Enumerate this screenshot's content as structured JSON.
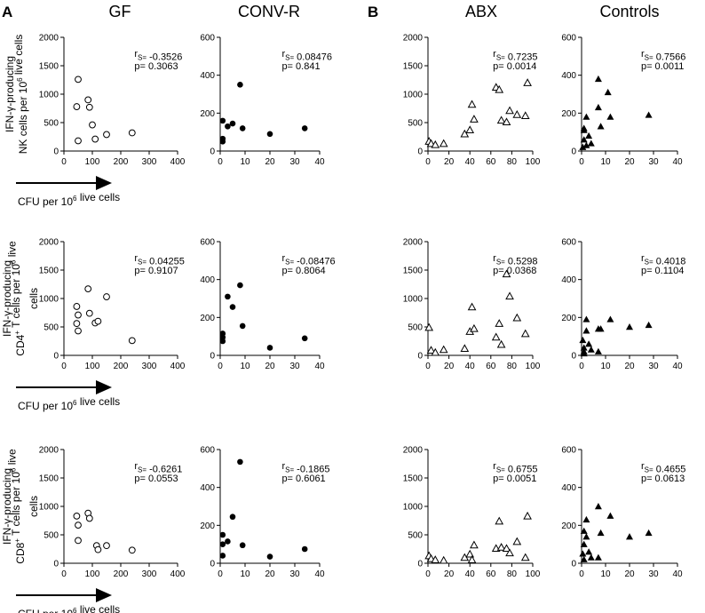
{
  "figure": {
    "panel_labels": [
      "A",
      "B"
    ],
    "column_titles": [
      "GF",
      "CONV-R",
      "ABX",
      "Controls"
    ],
    "row_ylabels": [
      [
        "IFN-γ-producing",
        "NK cells per 10^6 live cells"
      ],
      [
        "IFN-γ-producing",
        "CD4^+ T cells per 10^6 live",
        "cells"
      ],
      [
        "IFN-γ-producing",
        "CD8^+ T cells per 10^6 live",
        "cells"
      ]
    ],
    "cfu_label": "CFU per 10^6 live cells"
  },
  "chart_data": [
    {
      "id": "nk-gf",
      "type": "scatter",
      "column": "GF",
      "row": "NK",
      "marker": "open-circle",
      "xlim": [
        0,
        400
      ],
      "xticks": [
        0,
        100,
        200,
        300,
        400
      ],
      "ylim": [
        0,
        2000
      ],
      "yticks": [
        0,
        500,
        1000,
        1500,
        2000
      ],
      "rs": "r_S= -0.3526",
      "p": "p= 0.3063",
      "x": [
        50,
        45,
        85,
        90,
        100,
        110,
        150,
        240,
        50
      ],
      "y": [
        1260,
        780,
        900,
        770,
        460,
        210,
        290,
        320,
        180
      ]
    },
    {
      "id": "nk-convr",
      "type": "scatter",
      "column": "CONV-R",
      "row": "NK",
      "marker": "filled-circle",
      "xlim": [
        0,
        40
      ],
      "xticks": [
        0,
        10,
        20,
        30,
        40
      ],
      "ylim": [
        0,
        600
      ],
      "yticks": [
        0,
        200,
        400,
        600
      ],
      "rs": "r_S= 0.08476",
      "p": "p= 0.841",
      "x": [
        1,
        1,
        1,
        3,
        5,
        8,
        9,
        20,
        34
      ],
      "y": [
        160,
        65,
        50,
        130,
        145,
        350,
        120,
        90,
        120
      ]
    },
    {
      "id": "nk-abx",
      "type": "scatter",
      "column": "ABX",
      "row": "NK",
      "marker": "open-triangle",
      "xlim": [
        0,
        100
      ],
      "xticks": [
        0,
        20,
        40,
        60,
        80,
        100
      ],
      "ylim": [
        0,
        2000
      ],
      "yticks": [
        0,
        500,
        1000,
        1500,
        2000
      ],
      "rs": "r_S= 0.7235",
      "p": "p= 0.0014",
      "x": [
        1,
        3,
        7,
        15,
        35,
        40,
        42,
        44,
        65,
        68,
        70,
        75,
        78,
        85,
        93,
        95
      ],
      "y": [
        170,
        130,
        110,
        130,
        300,
        370,
        820,
        560,
        1120,
        1080,
        540,
        510,
        710,
        640,
        620,
        1200
      ]
    },
    {
      "id": "nk-controls",
      "type": "scatter",
      "column": "Controls",
      "row": "NK",
      "marker": "filled-triangle",
      "xlim": [
        0,
        40
      ],
      "xticks": [
        0,
        10,
        20,
        30,
        40
      ],
      "ylim": [
        0,
        600
      ],
      "yticks": [
        0,
        200,
        400,
        600
      ],
      "rs": "r_S= 0.7566",
      "p": "p= 0.0011",
      "x": [
        0.5,
        1,
        1,
        1,
        2,
        2,
        3,
        4,
        7,
        7,
        8,
        11,
        12,
        28
      ],
      "y": [
        20,
        60,
        110,
        120,
        180,
        30,
        80,
        40,
        380,
        230,
        130,
        310,
        180,
        190
      ]
    },
    {
      "id": "cd4-gf",
      "type": "scatter",
      "column": "GF",
      "row": "CD4",
      "marker": "open-circle",
      "xlim": [
        0,
        400
      ],
      "xticks": [
        0,
        100,
        200,
        300,
        400
      ],
      "ylim": [
        0,
        2000
      ],
      "yticks": [
        0,
        500,
        1000,
        1500,
        2000
      ],
      "rs": "r_S= 0.04255",
      "p": "p= 0.9107",
      "x": [
        45,
        50,
        85,
        90,
        110,
        120,
        150,
        240,
        45,
        50
      ],
      "y": [
        860,
        710,
        1170,
        740,
        570,
        600,
        1030,
        260,
        560,
        430
      ]
    },
    {
      "id": "cd4-convr",
      "type": "scatter",
      "column": "CONV-R",
      "row": "CD4",
      "marker": "filled-circle",
      "xlim": [
        0,
        40
      ],
      "xticks": [
        0,
        10,
        20,
        30,
        40
      ],
      "ylim": [
        0,
        600
      ],
      "yticks": [
        0,
        200,
        400,
        600
      ],
      "rs": "r_S= -0.08476",
      "p": "p= 0.8064",
      "x": [
        1,
        1,
        1,
        3,
        5,
        8,
        9,
        20,
        34
      ],
      "y": [
        115,
        95,
        75,
        310,
        255,
        370,
        155,
        40,
        90
      ]
    },
    {
      "id": "cd4-abx",
      "type": "scatter",
      "column": "ABX",
      "row": "CD4",
      "marker": "open-triangle",
      "xlim": [
        0,
        100
      ],
      "xticks": [
        0,
        20,
        40,
        60,
        80,
        100
      ],
      "ylim": [
        0,
        2000
      ],
      "yticks": [
        0,
        500,
        1000,
        1500,
        2000
      ],
      "rs": "r_S= 0.5298",
      "p": "p= 0.0368",
      "x": [
        1,
        3,
        7,
        15,
        35,
        40,
        42,
        44,
        65,
        68,
        70,
        75,
        78,
        85,
        93
      ],
      "y": [
        490,
        90,
        50,
        100,
        120,
        420,
        850,
        470,
        320,
        560,
        190,
        1430,
        1040,
        660,
        380
      ]
    },
    {
      "id": "cd4-controls",
      "type": "scatter",
      "column": "Controls",
      "row": "CD4",
      "marker": "filled-triangle",
      "xlim": [
        0,
        40
      ],
      "xticks": [
        0,
        10,
        20,
        30,
        40
      ],
      "ylim": [
        0,
        600
      ],
      "yticks": [
        0,
        200,
        400,
        600
      ],
      "rs": "r_S= 0.4018",
      "p": "p= 0.1104",
      "x": [
        0.5,
        1,
        1,
        1,
        2,
        2,
        3,
        4,
        7,
        7,
        8,
        12,
        20,
        28
      ],
      "y": [
        80,
        10,
        40,
        20,
        190,
        130,
        60,
        30,
        140,
        20,
        140,
        190,
        150,
        160
      ]
    },
    {
      "id": "cd8-gf",
      "type": "scatter",
      "column": "GF",
      "row": "CD8",
      "marker": "open-circle",
      "xlim": [
        0,
        400
      ],
      "xticks": [
        0,
        100,
        200,
        300,
        400
      ],
      "ylim": [
        0,
        2000
      ],
      "yticks": [
        0,
        500,
        1000,
        1500,
        2000
      ],
      "rs": "r_S= -0.6261",
      "p": "p= 0.0553",
      "x": [
        45,
        50,
        85,
        90,
        115,
        120,
        150,
        240,
        50
      ],
      "y": [
        830,
        670,
        880,
        790,
        310,
        240,
        310,
        230,
        400
      ]
    },
    {
      "id": "cd8-convr",
      "type": "scatter",
      "column": "CONV-R",
      "row": "CD8",
      "marker": "filled-circle",
      "xlim": [
        0,
        40
      ],
      "xticks": [
        0,
        10,
        20,
        30,
        40
      ],
      "ylim": [
        0,
        600
      ],
      "yticks": [
        0,
        200,
        400,
        600
      ],
      "rs": "r_S= -0.1865",
      "p": "p= 0.6061",
      "x": [
        1,
        1,
        1,
        3,
        5,
        8,
        9,
        20,
        34
      ],
      "y": [
        150,
        100,
        40,
        115,
        245,
        535,
        95,
        35,
        75
      ]
    },
    {
      "id": "cd8-abx",
      "type": "scatter",
      "column": "ABX",
      "row": "CD8",
      "marker": "open-triangle",
      "xlim": [
        0,
        100
      ],
      "xticks": [
        0,
        20,
        40,
        60,
        80,
        100
      ],
      "ylim": [
        0,
        2000
      ],
      "yticks": [
        0,
        500,
        1000,
        1500,
        2000
      ],
      "rs": "r_S= 0.6755",
      "p": "p= 0.0051",
      "x": [
        1,
        3,
        7,
        15,
        35,
        40,
        42,
        44,
        65,
        68,
        70,
        75,
        78,
        85,
        93,
        95
      ],
      "y": [
        130,
        80,
        60,
        50,
        100,
        160,
        60,
        320,
        260,
        740,
        280,
        260,
        180,
        380,
        100,
        830
      ]
    },
    {
      "id": "cd8-controls",
      "type": "scatter",
      "column": "Controls",
      "row": "CD8",
      "marker": "filled-triangle",
      "xlim": [
        0,
        40
      ],
      "xticks": [
        0,
        10,
        20,
        30,
        40
      ],
      "ylim": [
        0,
        600
      ],
      "yticks": [
        0,
        200,
        400,
        600
      ],
      "rs": "r_S= 0.4655",
      "p": "p= 0.0613",
      "x": [
        0.5,
        1,
        1,
        1,
        2,
        2,
        3,
        4,
        7,
        7,
        8,
        12,
        20,
        28
      ],
      "y": [
        50,
        20,
        100,
        170,
        230,
        140,
        60,
        30,
        300,
        30,
        160,
        250,
        140,
        160
      ]
    }
  ]
}
